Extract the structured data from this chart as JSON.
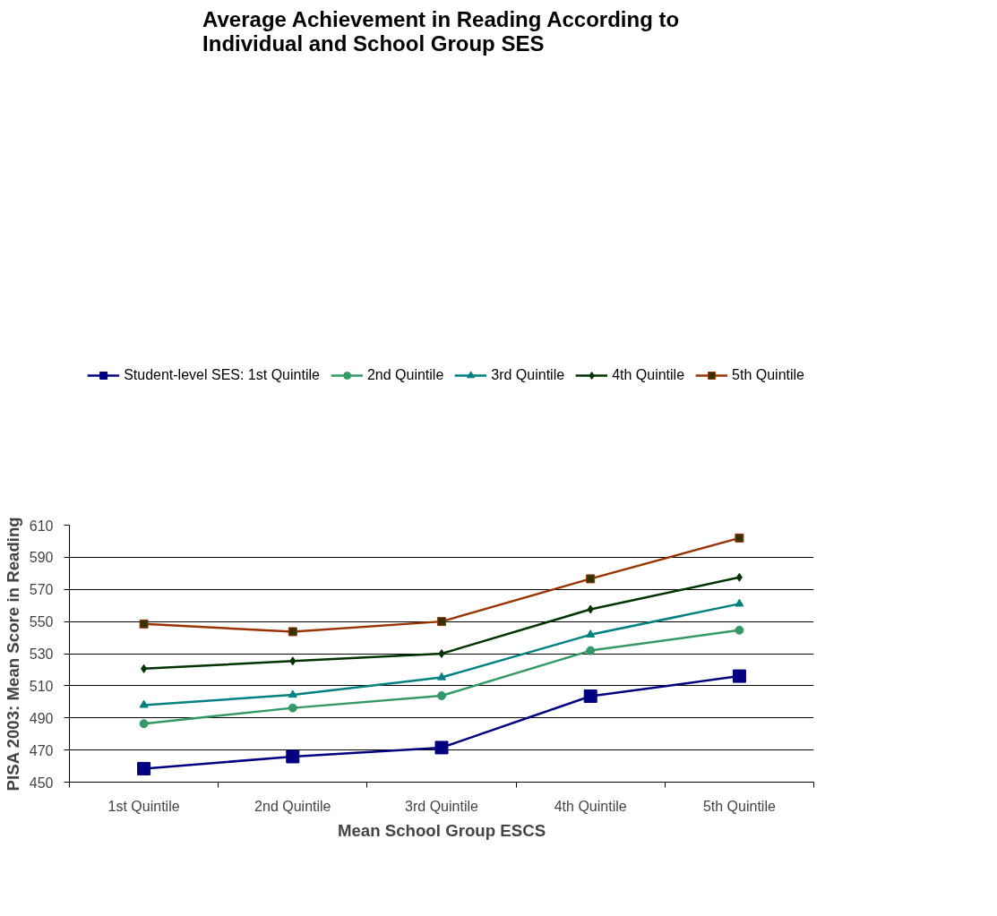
{
  "chart_data": {
    "type": "line",
    "title": "Average Achievement in Reading According to\nIndividual and School Group SES",
    "xlabel": "Mean School Group ESCS",
    "ylabel": "PISA 2003: Mean Score in Reading",
    "categories": [
      "1st Quintile",
      "2nd Quintile",
      "3rd Quintile",
      "4th Quintile",
      "5th Quintile"
    ],
    "series": [
      {
        "name": "Student-level SES: 1st Quintile",
        "color": "#000080",
        "marker": "square",
        "values": [
          458.4,
          465.9,
          471.5,
          503.5,
          516.0
        ]
      },
      {
        "name": "2nd Quintile",
        "color": "#339966",
        "marker": "circle",
        "values": [
          486.4,
          496.2,
          503.8,
          531.9,
          544.6
        ]
      },
      {
        "name": "3rd Quintile",
        "color": "#008080",
        "marker": "triangle",
        "values": [
          498.0,
          504.3,
          515.2,
          541.8,
          561.0
        ]
      },
      {
        "name": "4th Quintile",
        "color": "#003300",
        "marker": "diamond",
        "values": [
          520.6,
          525.4,
          530.0,
          557.6,
          577.5
        ]
      },
      {
        "name": "5th Quintile",
        "color": "#993300",
        "marker": "square",
        "values": [
          548.5,
          543.7,
          550.0,
          576.6,
          602.0
        ]
      }
    ],
    "ylim": [
      450,
      610
    ],
    "yticks": [
      450,
      470,
      490,
      510,
      530,
      550,
      570,
      590,
      610
    ],
    "grid": "y",
    "legend": "top"
  }
}
